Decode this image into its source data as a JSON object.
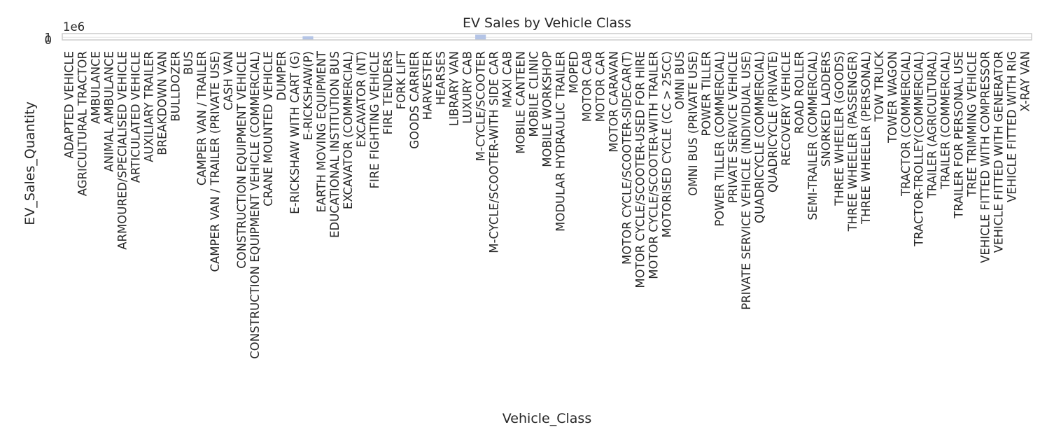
{
  "chart_data": {
    "type": "bar",
    "title": "EV Sales by Vehicle Class",
    "xlabel": "Vehicle_Class",
    "ylabel": "EV_Sales_Quantity",
    "y_offset_text": "1e6",
    "y_ticks": [
      "0",
      "1"
    ],
    "ylim": [
      0,
      2400000
    ],
    "grid": true,
    "categories": [
      "ADAPTED VEHICLE",
      "AGRICULTURAL TRACTOR",
      "AMBULANCE",
      "ANIMAL AMBULANCE",
      "ARMOURED/SPECIALISED VEHICLE",
      "ARTICULATED VEHICLE",
      "AUXILIARY TRAILER",
      "BREAKDOWN VAN",
      "BULLDOZER",
      "BUS",
      "CAMPER VAN / TRAILER",
      "CAMPER VAN / TRAILER (PRIVATE USE)",
      "CASH VAN",
      "CONSTRUCTION EQUIPMENT VEHICLE",
      "CONSTRUCTION EQUIPMENT VEHICLE (COMMERCIAL)",
      "CRANE MOUNTED VEHICLE",
      "DUMPER",
      "E-RICKSHAW WITH CART (G)",
      "E-RICKSHAW(P)",
      "EARTH MOVING EQUIPMENT",
      "EDUCATIONAL INSTITUTION BUS",
      "EXCAVATOR (COMMERCIAL)",
      "EXCAVATOR (NT)",
      "FIRE FIGHTING VEHICLE",
      "FIRE TENDERS",
      "FORK LIFT",
      "GOODS CARRIER",
      "HARVESTER",
      "HEARSES",
      "LIBRARY VAN",
      "LUXURY CAB",
      "M-CYCLE/SCOOTER",
      "M-CYCLE/SCOOTER-WITH SIDE CAR",
      "MAXI CAB",
      "MOBILE CANTEEN",
      "MOBILE CLINIC",
      "MOBILE WORKSHOP",
      "MODULAR HYDRAULIC TRAILER",
      "MOPED",
      "MOTOR CAB",
      "MOTOR CAR",
      "MOTOR CARAVAN",
      "MOTOR CYCLE/SCOOTER-SIDECAR(T)",
      "MOTOR CYCLE/SCOOTER-USED FOR HIRE",
      "MOTOR CYCLE/SCOOTER-WITH TRAILER",
      "MOTORISED CYCLE (CC > 25CC)",
      "OMNI BUS",
      "OMNI BUS (PRIVATE USE)",
      "POWER TILLER",
      "POWER TILLER (COMMERCIAL)",
      "PRIVATE SERVICE VEHICLE",
      "PRIVATE SERVICE VEHICLE (INDIVIDUAL USE)",
      "QUADRICYCLE (COMMERCIAL)",
      "QUADRICYCLE (PRIVATE)",
      "RECOVERY VEHICLE",
      "ROAD ROLLER",
      "SEMI-TRAILER (COMMERCIAL)",
      "SNORKED LADDERS",
      "THREE WHEELER (GOODS)",
      "THREE WHEELER (PASSENGER)",
      "THREE WHEELER (PERSONAL)",
      "TOW TRUCK",
      "TOWER WAGON",
      "TRACTOR (COMMERCIAL)",
      "TRACTOR-TROLLEY(COMMERCIAL)",
      "TRAILER (AGRICULTURAL)",
      "TRAILER (COMMERCIAL)",
      "TRAILER FOR PERSONAL USE",
      "TREE TRIMMING VEHICLE",
      "VEHICLE FITTED WITH COMPRESSOR",
      "VEHICLE FITTED WITH GENERATOR",
      "VEHICLE FITTED WITH RIG",
      "X-RAY VAN"
    ],
    "values": [
      0,
      0,
      0,
      0,
      0,
      0,
      0,
      0,
      0,
      9000,
      0,
      0,
      0,
      0,
      0,
      0,
      0,
      0,
      1400000,
      0,
      0,
      0,
      0,
      0,
      0,
      0,
      0,
      0,
      0,
      0,
      0,
      2000000,
      0,
      0,
      0,
      0,
      0,
      0,
      0,
      0,
      120000,
      0,
      0,
      0,
      0,
      0,
      0,
      0,
      0,
      0,
      0,
      0,
      0,
      0,
      0,
      0,
      0,
      0,
      0,
      0,
      0,
      0,
      0,
      0,
      0,
      0,
      0,
      0,
      0,
      0,
      0,
      0,
      0
    ],
    "bar_color": "#b4c4e6"
  }
}
